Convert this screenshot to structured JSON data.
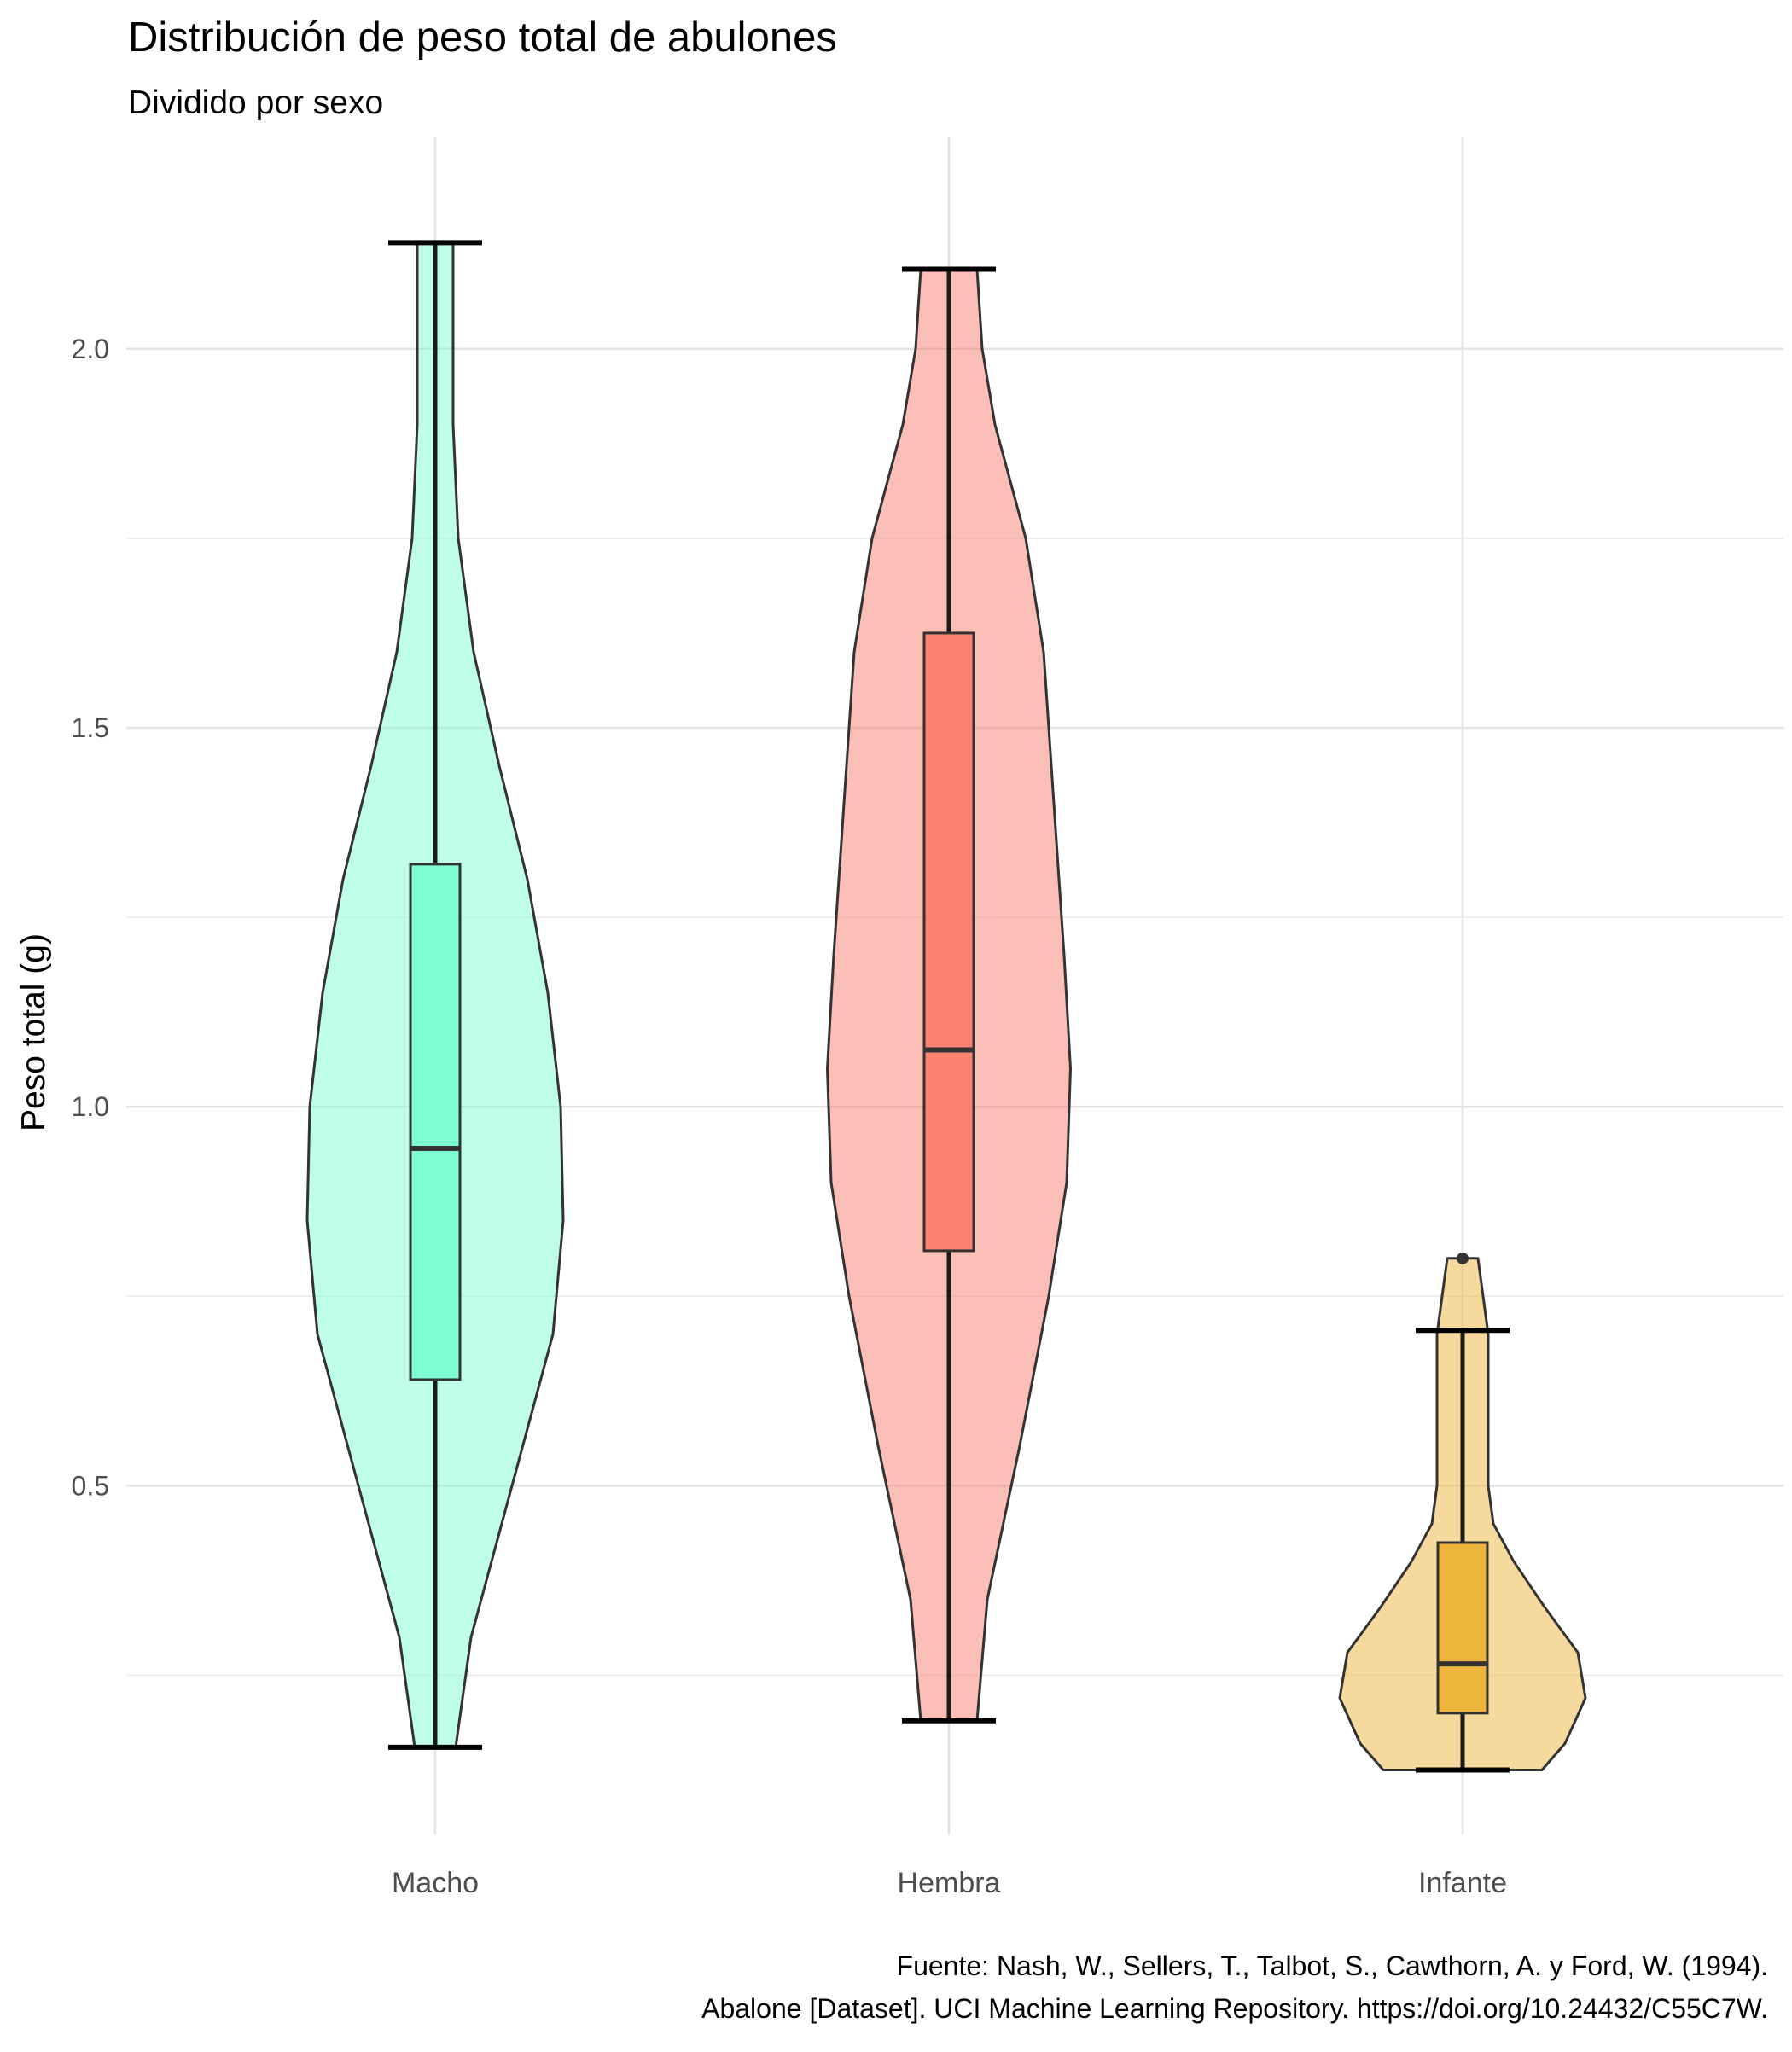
{
  "chart_data": {
    "type": "violin",
    "title": "Distribución de peso total de abulones",
    "subtitle": "Dividido por sexo",
    "xlabel": "",
    "ylabel": "Peso total (g)",
    "ylim": [
      0.04,
      2.28
    ],
    "yticks": [
      0.5,
      1.0,
      1.5,
      2.0
    ],
    "ytick_labels": [
      "0.5",
      "1.0",
      "1.5",
      "2.0"
    ],
    "y_minor_gridlines": [
      0.25,
      0.75,
      1.25,
      1.75
    ],
    "grid": true,
    "legend": "none",
    "categories": [
      "Macho",
      "Hembra",
      "Infante"
    ],
    "series": [
      {
        "category": "Macho",
        "violin_color": "#7FFFD4",
        "box_color": "#7FFFD4",
        "min": 0.155,
        "q1": 0.64,
        "median": 0.945,
        "q3": 1.32,
        "max": 2.14,
        "outliers": [],
        "density": [
          [
            0.155,
            0.16
          ],
          [
            0.3,
            0.28
          ],
          [
            0.5,
            0.6
          ],
          [
            0.7,
            0.92
          ],
          [
            0.85,
            1.0
          ],
          [
            1.0,
            0.98
          ],
          [
            1.15,
            0.88
          ],
          [
            1.3,
            0.72
          ],
          [
            1.45,
            0.5
          ],
          [
            1.6,
            0.3
          ],
          [
            1.75,
            0.18
          ],
          [
            1.9,
            0.14
          ],
          [
            2.05,
            0.14
          ],
          [
            2.14,
            0.14
          ]
        ]
      },
      {
        "category": "Hembra",
        "violin_color": "#FA8072",
        "box_color": "#FA8072",
        "min": 0.19,
        "q1": 0.81,
        "median": 1.075,
        "q3": 1.625,
        "max": 2.105,
        "outliers": [],
        "density": [
          [
            0.19,
            0.22
          ],
          [
            0.35,
            0.3
          ],
          [
            0.55,
            0.55
          ],
          [
            0.75,
            0.78
          ],
          [
            0.9,
            0.92
          ],
          [
            1.05,
            0.95
          ],
          [
            1.2,
            0.9
          ],
          [
            1.4,
            0.82
          ],
          [
            1.6,
            0.74
          ],
          [
            1.75,
            0.6
          ],
          [
            1.9,
            0.36
          ],
          [
            2.0,
            0.26
          ],
          [
            2.105,
            0.22
          ]
        ]
      },
      {
        "category": "Infante",
        "violin_color": "#EDB53C",
        "box_color": "#EDB53C",
        "min": 0.125,
        "q1": 0.2,
        "median": 0.265,
        "q3": 0.425,
        "max": 0.705,
        "outliers": [
          0.8
        ],
        "density": [
          [
            0.125,
            0.62
          ],
          [
            0.16,
            0.8
          ],
          [
            0.22,
            0.96
          ],
          [
            0.28,
            0.9
          ],
          [
            0.34,
            0.64
          ],
          [
            0.4,
            0.4
          ],
          [
            0.45,
            0.24
          ],
          [
            0.5,
            0.2
          ],
          [
            0.6,
            0.2
          ],
          [
            0.7,
            0.2
          ],
          [
            0.75,
            0.16
          ],
          [
            0.8,
            0.12
          ]
        ]
      }
    ],
    "caption": [
      "Fuente: Nash, W., Sellers, T., Talbot, S., Cawthorn, A. y Ford, W. (1994).",
      "Abalone [Dataset]. UCI Machine Learning Repository. https://doi.org/10.24432/C55C7W."
    ]
  }
}
